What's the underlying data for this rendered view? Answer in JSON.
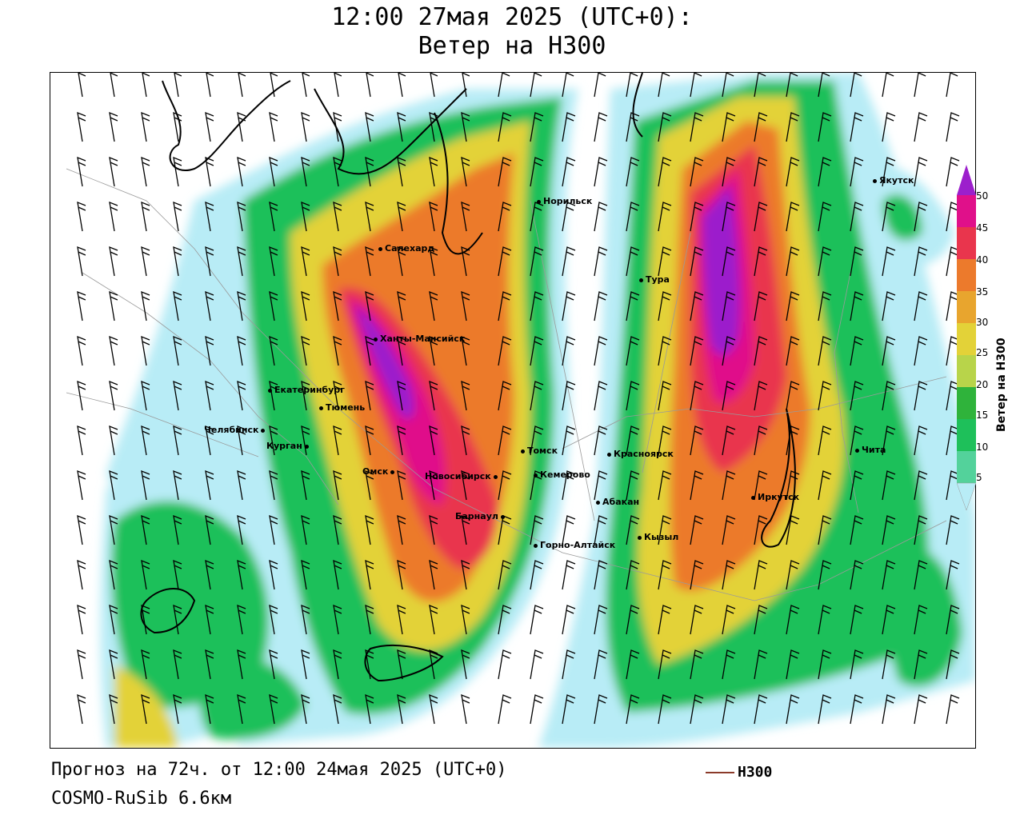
{
  "header": {
    "title_line1": "12:00 27мая 2025 (UTC+0):",
    "title_line2": "Ветер на H300"
  },
  "footer": {
    "forecast": "Прогноз на 72ч. от 12:00 24мая 2025 (UTC+0)",
    "model": "COSMO-RuSib 6.6км",
    "contour_legend": "H300"
  },
  "colorbar": {
    "label": "Ветер на H300",
    "ticks": [
      "50",
      "45",
      "40",
      "35",
      "30",
      "25",
      "20",
      "15",
      "10",
      "5"
    ],
    "colors": {
      "c5": "#b8ecf6",
      "c10": "#53d29b",
      "c15": "#1ec05a",
      "c20": "#2fb33b",
      "c25": "#b8d44a",
      "c30": "#e3d238",
      "c35": "#e8a52e",
      "c40": "#ec7a2c",
      "c45": "#e9354d",
      "c50": "#e0108a",
      "c55": "#9c1fcc"
    },
    "contour_color": "#8b3a2a"
  },
  "cities": [
    {
      "name": "Якутск"
    },
    {
      "name": "Норильск"
    },
    {
      "name": "Салехард"
    },
    {
      "name": "Тура"
    },
    {
      "name": "Ханты-Мансийск"
    },
    {
      "name": "Екатеринбург"
    },
    {
      "name": "Тюмень"
    },
    {
      "name": "Челябинск"
    },
    {
      "name": "Курган"
    },
    {
      "name": "Омск"
    },
    {
      "name": "Томск"
    },
    {
      "name": "Красноярск"
    },
    {
      "name": "Новосибирск"
    },
    {
      "name": "Кемерово"
    },
    {
      "name": "Абакан"
    },
    {
      "name": "Барнаул"
    },
    {
      "name": "Иркутск"
    },
    {
      "name": "Кызыл"
    },
    {
      "name": "Горно-Алтайск"
    },
    {
      "name": "Чита"
    }
  ]
}
